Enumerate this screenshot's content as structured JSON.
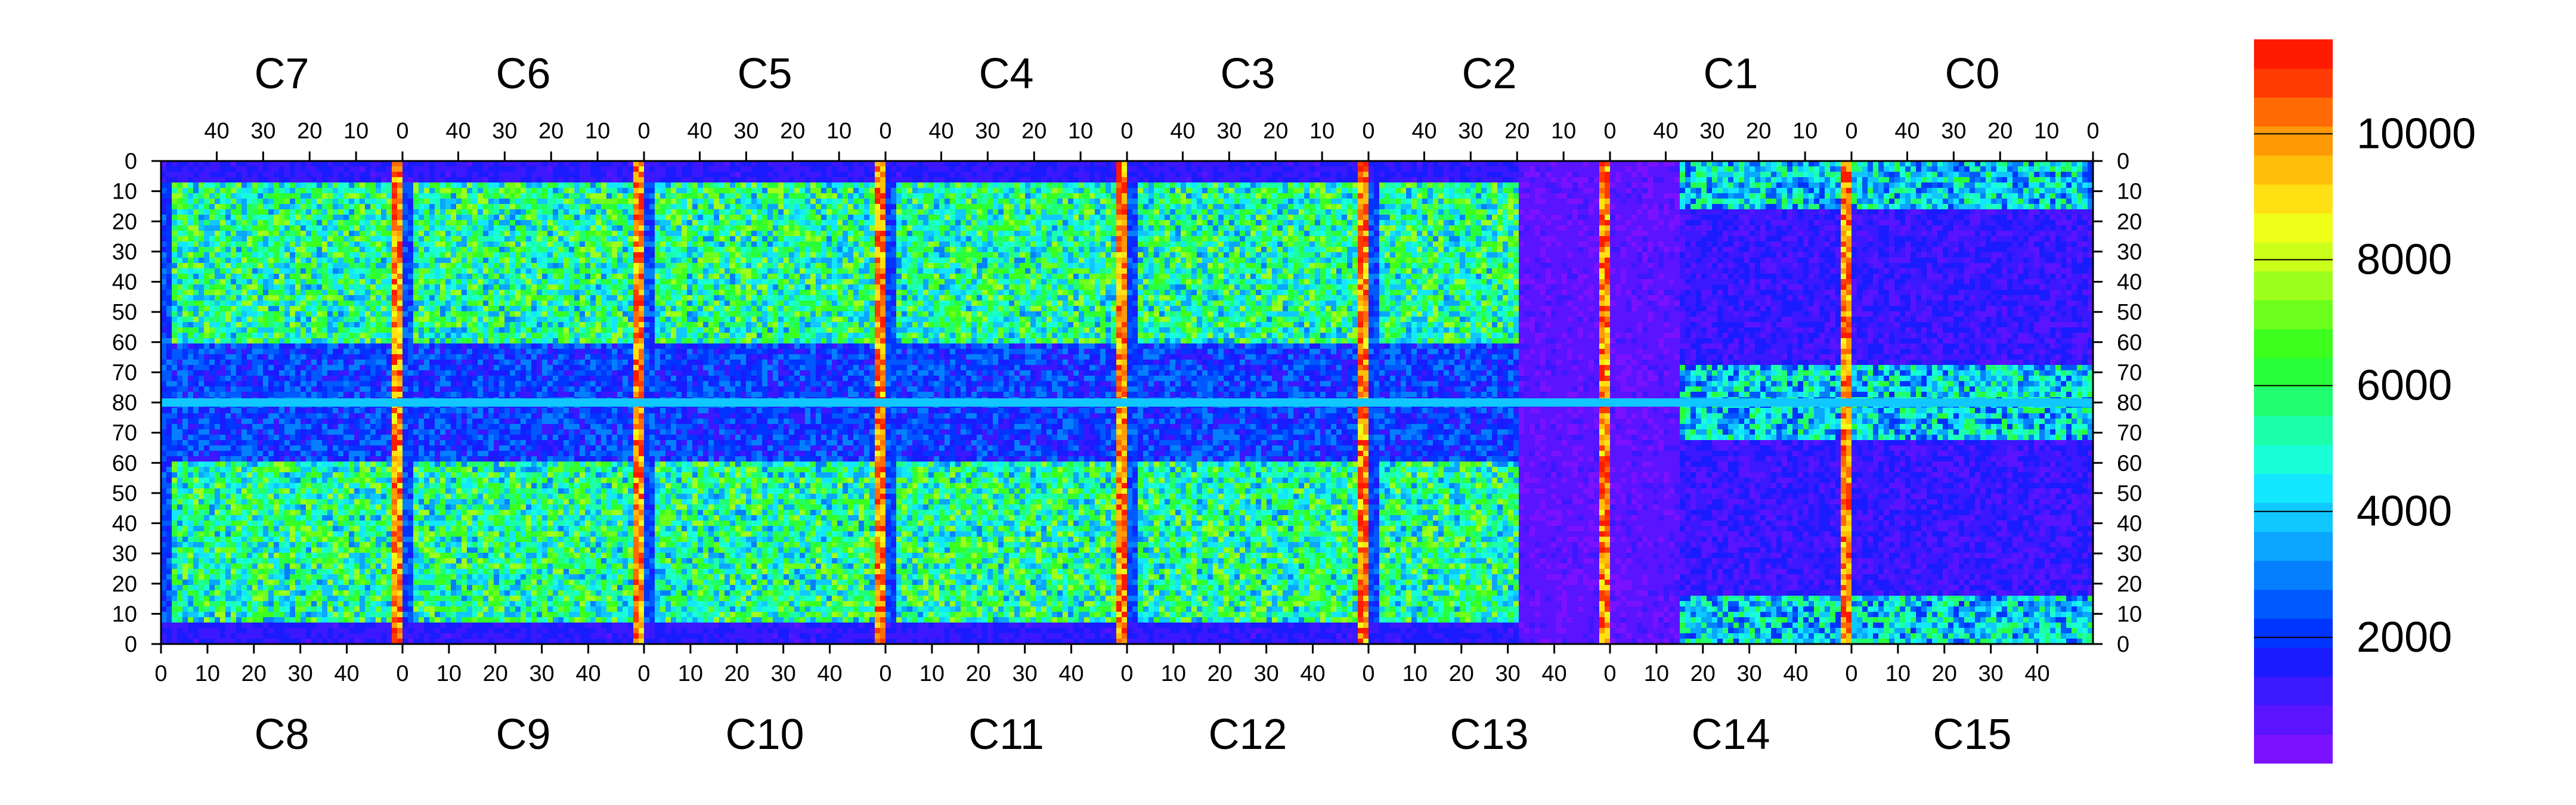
{
  "chart_data": {
    "type": "heatmap",
    "title": "",
    "xlabel": "",
    "ylabel": "",
    "chips_top": [
      "C7",
      "C6",
      "C5",
      "C4",
      "C3",
      "C2",
      "C1",
      "C0"
    ],
    "chips_bottom": [
      "C8",
      "C9",
      "C10",
      "C11",
      "C12",
      "C13",
      "C14",
      "C15"
    ],
    "x_ticks_top": [
      "40",
      "30",
      "20",
      "10",
      "0"
    ],
    "x_ticks_bottom": [
      "0",
      "10",
      "20",
      "30",
      "40"
    ],
    "y_ticks_top_half": [
      "0",
      "10",
      "20",
      "30",
      "40",
      "50",
      "60",
      "70",
      "80"
    ],
    "y_ticks_bottom_half": [
      "70",
      "60",
      "50",
      "40",
      "30",
      "20",
      "10",
      "0"
    ],
    "x_range_per_chip": [
      0,
      52
    ],
    "y_range_per_half": [
      0,
      80
    ],
    "colorbar": {
      "range": [
        0,
        11500
      ],
      "ticks": [
        "2000",
        "4000",
        "6000",
        "8000",
        "10000"
      ],
      "tick_values": [
        2000,
        4000,
        6000,
        8000,
        10000
      ],
      "colors": [
        "#7b12ff",
        "#5a14ff",
        "#3c18ff",
        "#1a1cff",
        "#0034ff",
        "#0058ff",
        "#0480ff",
        "#0aa6ff",
        "#10c8ff",
        "#13e6ff",
        "#18ffd8",
        "#1cffaa",
        "#20ff70",
        "#28ff3a",
        "#3cff1e",
        "#6cff1c",
        "#9cff1c",
        "#caff1a",
        "#f0ff18",
        "#ffe012",
        "#ffbe0a",
        "#ff9a06",
        "#ff6a04",
        "#ff3a02",
        "#ff1a00"
      ]
    },
    "grid": false,
    "legend": "colorbar-right"
  }
}
